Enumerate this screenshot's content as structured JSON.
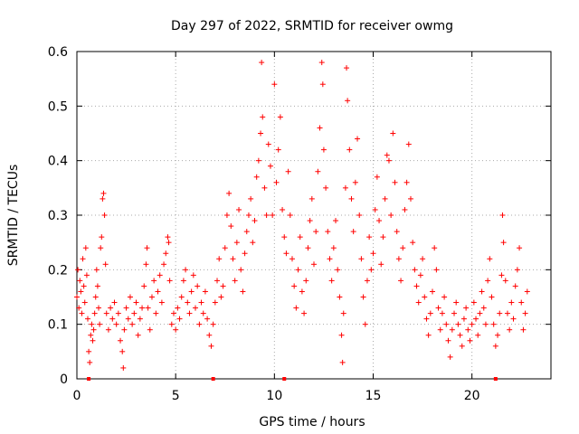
{
  "chart_data": {
    "type": "scatter",
    "title": "Day 297 of 2022, SRMTID for receiver owmg",
    "xlabel": "GPS time / hours",
    "ylabel": "SRMTID / TECUs",
    "xlim": [
      0,
      24
    ],
    "ylim": [
      0,
      0.6
    ],
    "x_ticks": [
      0,
      5,
      10,
      15,
      20
    ],
    "y_ticks": [
      0,
      0.1,
      0.2,
      0.3,
      0.4,
      0.5,
      0.6
    ],
    "grid": true,
    "marker": "+",
    "color": "#ff0000",
    "gap_markers_x": [
      0.6,
      6.9,
      10.5,
      21.2
    ],
    "series": [
      {
        "name": "SRMTID",
        "points": [
          [
            0.0,
            0.15
          ],
          [
            0.05,
            0.2
          ],
          [
            0.1,
            0.13
          ],
          [
            0.15,
            0.18
          ],
          [
            0.2,
            0.16
          ],
          [
            0.25,
            0.12
          ],
          [
            0.3,
            0.22
          ],
          [
            0.35,
            0.17
          ],
          [
            0.4,
            0.14
          ],
          [
            0.45,
            0.24
          ],
          [
            0.5,
            0.19
          ],
          [
            0.55,
            0.11
          ],
          [
            0.6,
            0.05
          ],
          [
            0.65,
            0.03
          ],
          [
            0.7,
            0.08
          ],
          [
            0.75,
            0.1
          ],
          [
            0.8,
            0.07
          ],
          [
            0.85,
            0.09
          ],
          [
            0.9,
            0.12
          ],
          [
            0.95,
            0.15
          ],
          [
            1.0,
            0.2
          ],
          [
            1.05,
            0.17
          ],
          [
            1.1,
            0.13
          ],
          [
            1.15,
            0.1
          ],
          [
            1.2,
            0.24
          ],
          [
            1.25,
            0.26
          ],
          [
            1.3,
            0.33
          ],
          [
            1.35,
            0.34
          ],
          [
            1.4,
            0.3
          ],
          [
            1.45,
            0.21
          ],
          [
            1.5,
            0.12
          ],
          [
            1.6,
            0.09
          ],
          [
            1.7,
            0.13
          ],
          [
            1.8,
            0.11
          ],
          [
            1.9,
            0.14
          ],
          [
            2.0,
            0.1
          ],
          [
            2.1,
            0.12
          ],
          [
            2.2,
            0.07
          ],
          [
            2.3,
            0.05
          ],
          [
            2.35,
            0.02
          ],
          [
            2.4,
            0.09
          ],
          [
            2.5,
            0.13
          ],
          [
            2.6,
            0.11
          ],
          [
            2.7,
            0.15
          ],
          [
            2.8,
            0.1
          ],
          [
            2.9,
            0.12
          ],
          [
            3.0,
            0.14
          ],
          [
            3.1,
            0.08
          ],
          [
            3.2,
            0.11
          ],
          [
            3.3,
            0.13
          ],
          [
            3.4,
            0.17
          ],
          [
            3.5,
            0.21
          ],
          [
            3.55,
            0.24
          ],
          [
            3.6,
            0.13
          ],
          [
            3.7,
            0.09
          ],
          [
            3.8,
            0.15
          ],
          [
            3.9,
            0.18
          ],
          [
            4.0,
            0.12
          ],
          [
            4.1,
            0.16
          ],
          [
            4.2,
            0.19
          ],
          [
            4.3,
            0.14
          ],
          [
            4.4,
            0.21
          ],
          [
            4.5,
            0.23
          ],
          [
            4.6,
            0.26
          ],
          [
            4.65,
            0.25
          ],
          [
            4.7,
            0.18
          ],
          [
            4.8,
            0.1
          ],
          [
            4.9,
            0.12
          ],
          [
            5.0,
            0.09
          ],
          [
            5.1,
            0.13
          ],
          [
            5.2,
            0.11
          ],
          [
            5.3,
            0.15
          ],
          [
            5.4,
            0.18
          ],
          [
            5.5,
            0.2
          ],
          [
            5.6,
            0.14
          ],
          [
            5.7,
            0.12
          ],
          [
            5.8,
            0.16
          ],
          [
            5.9,
            0.19
          ],
          [
            6.0,
            0.13
          ],
          [
            6.1,
            0.17
          ],
          [
            6.2,
            0.1
          ],
          [
            6.3,
            0.14
          ],
          [
            6.4,
            0.12
          ],
          [
            6.5,
            0.16
          ],
          [
            6.6,
            0.11
          ],
          [
            6.7,
            0.08
          ],
          [
            6.8,
            0.06
          ],
          [
            6.9,
            0.1
          ],
          [
            7.0,
            0.14
          ],
          [
            7.1,
            0.18
          ],
          [
            7.2,
            0.22
          ],
          [
            7.3,
            0.15
          ],
          [
            7.4,
            0.17
          ],
          [
            7.5,
            0.24
          ],
          [
            7.6,
            0.3
          ],
          [
            7.7,
            0.34
          ],
          [
            7.8,
            0.28
          ],
          [
            7.9,
            0.22
          ],
          [
            8.0,
            0.18
          ],
          [
            8.1,
            0.25
          ],
          [
            8.2,
            0.31
          ],
          [
            8.3,
            0.2
          ],
          [
            8.4,
            0.16
          ],
          [
            8.5,
            0.23
          ],
          [
            8.6,
            0.27
          ],
          [
            8.7,
            0.3
          ],
          [
            8.8,
            0.33
          ],
          [
            8.9,
            0.25
          ],
          [
            9.0,
            0.29
          ],
          [
            9.1,
            0.37
          ],
          [
            9.2,
            0.4
          ],
          [
            9.3,
            0.45
          ],
          [
            9.35,
            0.58
          ],
          [
            9.4,
            0.48
          ],
          [
            9.5,
            0.35
          ],
          [
            9.6,
            0.3
          ],
          [
            9.7,
            0.43
          ],
          [
            9.8,
            0.39
          ],
          [
            9.9,
            0.3
          ],
          [
            10.0,
            0.54
          ],
          [
            10.1,
            0.36
          ],
          [
            10.2,
            0.42
          ],
          [
            10.3,
            0.48
          ],
          [
            10.4,
            0.31
          ],
          [
            10.5,
            0.26
          ],
          [
            10.6,
            0.23
          ],
          [
            10.7,
            0.38
          ],
          [
            10.8,
            0.3
          ],
          [
            10.9,
            0.22
          ],
          [
            11.0,
            0.17
          ],
          [
            11.1,
            0.13
          ],
          [
            11.2,
            0.2
          ],
          [
            11.3,
            0.26
          ],
          [
            11.4,
            0.16
          ],
          [
            11.5,
            0.12
          ],
          [
            11.6,
            0.18
          ],
          [
            11.7,
            0.24
          ],
          [
            11.8,
            0.29
          ],
          [
            11.9,
            0.33
          ],
          [
            12.0,
            0.21
          ],
          [
            12.1,
            0.27
          ],
          [
            12.2,
            0.38
          ],
          [
            12.3,
            0.46
          ],
          [
            12.4,
            0.58
          ],
          [
            12.45,
            0.54
          ],
          [
            12.5,
            0.42
          ],
          [
            12.6,
            0.35
          ],
          [
            12.7,
            0.27
          ],
          [
            12.8,
            0.22
          ],
          [
            12.9,
            0.18
          ],
          [
            13.0,
            0.24
          ],
          [
            13.1,
            0.29
          ],
          [
            13.2,
            0.2
          ],
          [
            13.3,
            0.15
          ],
          [
            13.4,
            0.08
          ],
          [
            13.45,
            0.03
          ],
          [
            13.5,
            0.12
          ],
          [
            13.6,
            0.35
          ],
          [
            13.65,
            0.57
          ],
          [
            13.7,
            0.51
          ],
          [
            13.8,
            0.42
          ],
          [
            13.9,
            0.33
          ],
          [
            14.0,
            0.27
          ],
          [
            14.1,
            0.36
          ],
          [
            14.2,
            0.44
          ],
          [
            14.3,
            0.3
          ],
          [
            14.4,
            0.22
          ],
          [
            14.5,
            0.15
          ],
          [
            14.6,
            0.1
          ],
          [
            14.7,
            0.18
          ],
          [
            14.8,
            0.26
          ],
          [
            14.9,
            0.2
          ],
          [
            15.0,
            0.23
          ],
          [
            15.1,
            0.31
          ],
          [
            15.2,
            0.37
          ],
          [
            15.3,
            0.29
          ],
          [
            15.4,
            0.21
          ],
          [
            15.5,
            0.26
          ],
          [
            15.6,
            0.33
          ],
          [
            15.7,
            0.41
          ],
          [
            15.8,
            0.4
          ],
          [
            15.9,
            0.3
          ],
          [
            16.0,
            0.45
          ],
          [
            16.1,
            0.36
          ],
          [
            16.2,
            0.27
          ],
          [
            16.3,
            0.22
          ],
          [
            16.4,
            0.18
          ],
          [
            16.5,
            0.24
          ],
          [
            16.6,
            0.31
          ],
          [
            16.7,
            0.36
          ],
          [
            16.8,
            0.43
          ],
          [
            16.9,
            0.33
          ],
          [
            17.0,
            0.25
          ],
          [
            17.1,
            0.2
          ],
          [
            17.2,
            0.17
          ],
          [
            17.3,
            0.14
          ],
          [
            17.4,
            0.19
          ],
          [
            17.5,
            0.22
          ],
          [
            17.6,
            0.15
          ],
          [
            17.7,
            0.11
          ],
          [
            17.8,
            0.08
          ],
          [
            17.9,
            0.12
          ],
          [
            18.0,
            0.16
          ],
          [
            18.1,
            0.24
          ],
          [
            18.2,
            0.2
          ],
          [
            18.3,
            0.13
          ],
          [
            18.4,
            0.09
          ],
          [
            18.5,
            0.12
          ],
          [
            18.6,
            0.15
          ],
          [
            18.7,
            0.1
          ],
          [
            18.8,
            0.07
          ],
          [
            18.9,
            0.04
          ],
          [
            19.0,
            0.09
          ],
          [
            19.1,
            0.12
          ],
          [
            19.2,
            0.14
          ],
          [
            19.3,
            0.1
          ],
          [
            19.4,
            0.08
          ],
          [
            19.5,
            0.06
          ],
          [
            19.6,
            0.11
          ],
          [
            19.7,
            0.13
          ],
          [
            19.8,
            0.09
          ],
          [
            19.9,
            0.07
          ],
          [
            20.0,
            0.1
          ],
          [
            20.1,
            0.14
          ],
          [
            20.2,
            0.11
          ],
          [
            20.3,
            0.08
          ],
          [
            20.4,
            0.12
          ],
          [
            20.5,
            0.16
          ],
          [
            20.6,
            0.13
          ],
          [
            20.7,
            0.1
          ],
          [
            20.8,
            0.18
          ],
          [
            20.9,
            0.22
          ],
          [
            21.0,
            0.15
          ],
          [
            21.1,
            0.1
          ],
          [
            21.2,
            0.06
          ],
          [
            21.3,
            0.08
          ],
          [
            21.4,
            0.12
          ],
          [
            21.5,
            0.19
          ],
          [
            21.55,
            0.3
          ],
          [
            21.6,
            0.25
          ],
          [
            21.7,
            0.18
          ],
          [
            21.8,
            0.12
          ],
          [
            21.9,
            0.09
          ],
          [
            22.0,
            0.14
          ],
          [
            22.1,
            0.11
          ],
          [
            22.2,
            0.17
          ],
          [
            22.3,
            0.2
          ],
          [
            22.4,
            0.24
          ],
          [
            22.5,
            0.14
          ],
          [
            22.6,
            0.09
          ],
          [
            22.7,
            0.12
          ],
          [
            22.8,
            0.16
          ]
        ]
      }
    ]
  }
}
